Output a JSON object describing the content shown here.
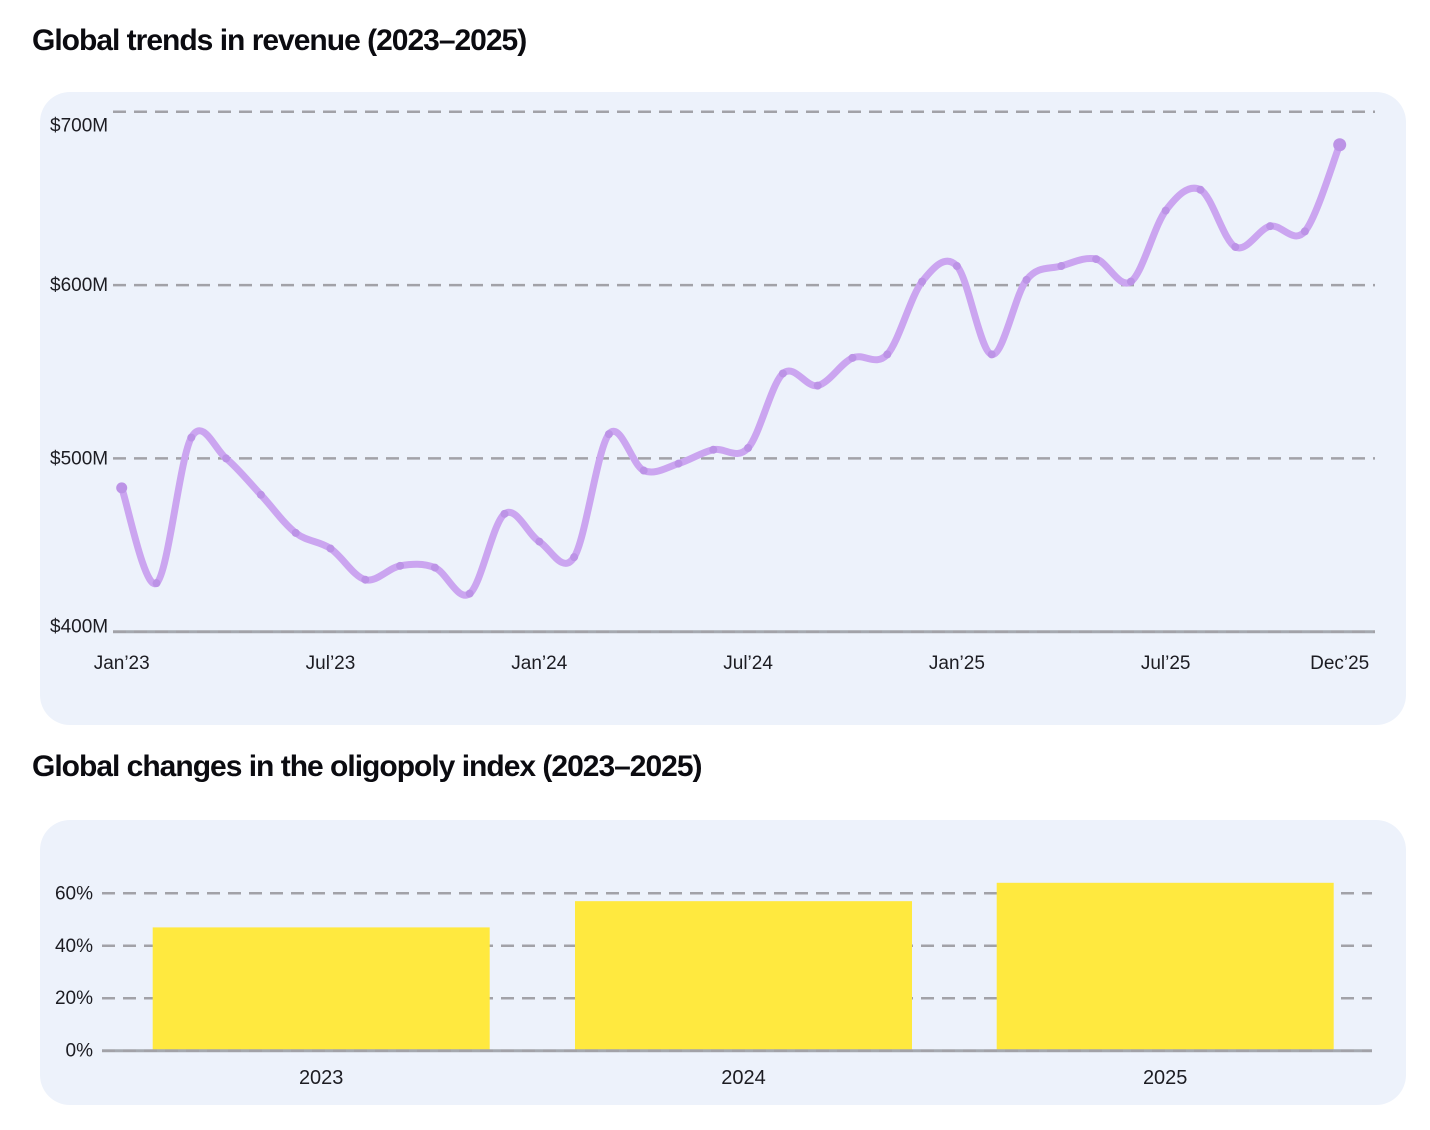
{
  "page_background": "#ffffff",
  "chart_data": [
    {
      "type": "line",
      "title": "Global trends in revenue (2023–2025)",
      "series": [
        {
          "name": "Revenue ($M)",
          "values": [
            483,
            428,
            512,
            500,
            479,
            457,
            448,
            430,
            438,
            437,
            422,
            468,
            452,
            443,
            514,
            493,
            497,
            505,
            506,
            549,
            542,
            558,
            560,
            602,
            611,
            560,
            603,
            611,
            615,
            602,
            643,
            655,
            622,
            634,
            631,
            681
          ]
        }
      ],
      "months": [
        "Jan’23",
        "Feb’23",
        "Mar’23",
        "Apr’23",
        "May’23",
        "Jun’23",
        "Jul’23",
        "Aug’23",
        "Sep’23",
        "Oct’23",
        "Nov’23",
        "Dec’23",
        "Jan’24",
        "Feb’24",
        "Mar’24",
        "Apr’24",
        "May’24",
        "Jun’24",
        "Jul’24",
        "Aug’24",
        "Sep’24",
        "Oct’24",
        "Nov’24",
        "Dec’24",
        "Jan’25",
        "Feb’25",
        "Mar’25",
        "Apr’25",
        "May’25",
        "Jun’25",
        "Jul’25",
        "Aug’25",
        "Sep’25",
        "Oct’25",
        "Nov’25",
        "Dec’25"
      ],
      "x_tick_labels": [
        "Jan’23",
        "Jul’23",
        "Jan’24",
        "Jul’24",
        "Jan’25",
        "Jul’25",
        "Dec’25"
      ],
      "x_tick_month_indices": [
        0,
        6,
        12,
        18,
        24,
        30,
        35
      ],
      "y_ticks": [
        {
          "label": "$400M",
          "value": 400
        },
        {
          "label": "$500M",
          "value": 500
        },
        {
          "label": "$600M",
          "value": 600
        },
        {
          "label": "$700M",
          "value": 700
        }
      ],
      "ylim": [
        400,
        712
      ],
      "grid": "dashed horizontal gridlines, solid baseline at $400M",
      "legend": "none",
      "line_color": "#CBA5F0",
      "marker_color": "#BC93E6",
      "panel_background": "#EDF2FB",
      "gridline_color": "#A2A2A8",
      "baseline_color": "#A5A9B0",
      "label_color": "#1C1C22"
    },
    {
      "type": "bar",
      "title": "Global changes in the oligopoly index (2023–2025)",
      "categories": [
        "2023",
        "2024",
        "2025"
      ],
      "values": [
        47,
        57,
        64
      ],
      "y_ticks": [
        {
          "label": "0%",
          "value": 0
        },
        {
          "label": "20%",
          "value": 20
        },
        {
          "label": "40%",
          "value": 40
        },
        {
          "label": "60%",
          "value": 60
        }
      ],
      "ylim": [
        0,
        68
      ],
      "grid": "dashed horizontal gridlines, solid baseline at 0%",
      "legend": "none",
      "bar_color": "#FFE93F",
      "panel_background": "#EDF2FB",
      "gridline_color": "#A2A2A8",
      "baseline_color": "#A5A9B0",
      "label_color": "#1C1C22"
    }
  ]
}
